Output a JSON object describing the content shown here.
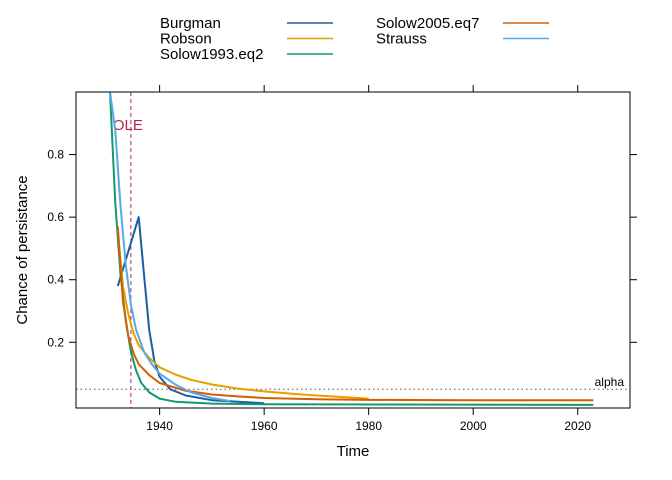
{
  "chart_data": {
    "type": "line",
    "xlabel": "Time",
    "ylabel": "Chance of persistance",
    "xlim": [
      1924,
      2030
    ],
    "ylim": [
      -0.01,
      1.0
    ],
    "x_ticks": [
      1940,
      1960,
      1980,
      2000,
      2020
    ],
    "y_ticks": [
      0.2,
      0.4,
      0.6,
      0.8
    ],
    "grid": false,
    "legend_position": "top",
    "legend_entries": [
      {
        "name": "Burgman",
        "color": "#1a5fa3"
      },
      {
        "name": "Robson",
        "color": "#e69f00"
      },
      {
        "name": "Solow1993.eq2",
        "color": "#119a6f"
      },
      {
        "name": "Solow2005.eq7",
        "color": "#d55e00"
      },
      {
        "name": "Strauss",
        "color": "#56a8e8"
      }
    ],
    "series": [
      {
        "name": "Burgman",
        "color": "#1a5fa3",
        "points": [
          [
            1932,
            0.38
          ],
          [
            1934,
            0.49
          ],
          [
            1936,
            0.6
          ],
          [
            1937,
            0.42
          ],
          [
            1938,
            0.24
          ],
          [
            1939,
            0.14
          ],
          [
            1940,
            0.09
          ],
          [
            1942,
            0.05
          ],
          [
            1945,
            0.03
          ],
          [
            1950,
            0.015
          ],
          [
            1955,
            0.01
          ],
          [
            1960,
            0.005
          ]
        ]
      },
      {
        "name": "Robson",
        "color": "#e69f00",
        "points": [
          [
            1932,
            0.55
          ],
          [
            1933,
            0.38
          ],
          [
            1934,
            0.29
          ],
          [
            1935,
            0.23
          ],
          [
            1936,
            0.19
          ],
          [
            1938,
            0.15
          ],
          [
            1940,
            0.12
          ],
          [
            1943,
            0.097
          ],
          [
            1946,
            0.08
          ],
          [
            1950,
            0.065
          ],
          [
            1955,
            0.052
          ],
          [
            1960,
            0.043
          ],
          [
            1965,
            0.036
          ],
          [
            1970,
            0.03
          ],
          [
            1975,
            0.025
          ],
          [
            1980,
            0.02
          ]
        ]
      },
      {
        "name": "Solow1993.eq2",
        "color": "#119a6f",
        "points": [
          [
            1930.5,
            1.0
          ],
          [
            1931.5,
            0.65
          ],
          [
            1932.5,
            0.42
          ],
          [
            1933.5,
            0.27
          ],
          [
            1934.5,
            0.17
          ],
          [
            1935.5,
            0.11
          ],
          [
            1936.5,
            0.07
          ],
          [
            1938,
            0.04
          ],
          [
            1940,
            0.02
          ],
          [
            1943,
            0.01
          ],
          [
            1950,
            0.004
          ],
          [
            1960,
            0.002
          ],
          [
            2023,
            0.0
          ]
        ]
      },
      {
        "name": "Solow2005.eq7",
        "color": "#d55e00",
        "points": [
          [
            1932,
            0.57
          ],
          [
            1933,
            0.33
          ],
          [
            1934,
            0.22
          ],
          [
            1935,
            0.165
          ],
          [
            1936,
            0.13
          ],
          [
            1938,
            0.095
          ],
          [
            1940,
            0.07
          ],
          [
            1945,
            0.045
          ],
          [
            1950,
            0.033
          ],
          [
            1955,
            0.027
          ],
          [
            1960,
            0.022
          ],
          [
            1970,
            0.018
          ],
          [
            1980,
            0.016
          ],
          [
            2000,
            0.015
          ],
          [
            2023,
            0.015
          ]
        ]
      },
      {
        "name": "Strauss",
        "color": "#56a8e8",
        "points": [
          [
            1930.5,
            1.0
          ],
          [
            1931.5,
            0.88
          ],
          [
            1932.5,
            0.64
          ],
          [
            1933.5,
            0.45
          ],
          [
            1934.5,
            0.32
          ],
          [
            1935.5,
            0.24
          ],
          [
            1937,
            0.17
          ],
          [
            1938.5,
            0.13
          ],
          [
            1940,
            0.1
          ],
          [
            1943,
            0.065
          ],
          [
            1946,
            0.04
          ],
          [
            1950,
            0.022
          ],
          [
            1953.5,
            0.012
          ]
        ]
      }
    ],
    "annotations": [
      {
        "type": "vline",
        "x": 1934.5,
        "label": "OLE",
        "color": "#b5274e",
        "style": "dashed"
      },
      {
        "type": "hline",
        "y": 0.05,
        "label": "alpha",
        "color": "#555555",
        "style": "dotted"
      }
    ]
  }
}
